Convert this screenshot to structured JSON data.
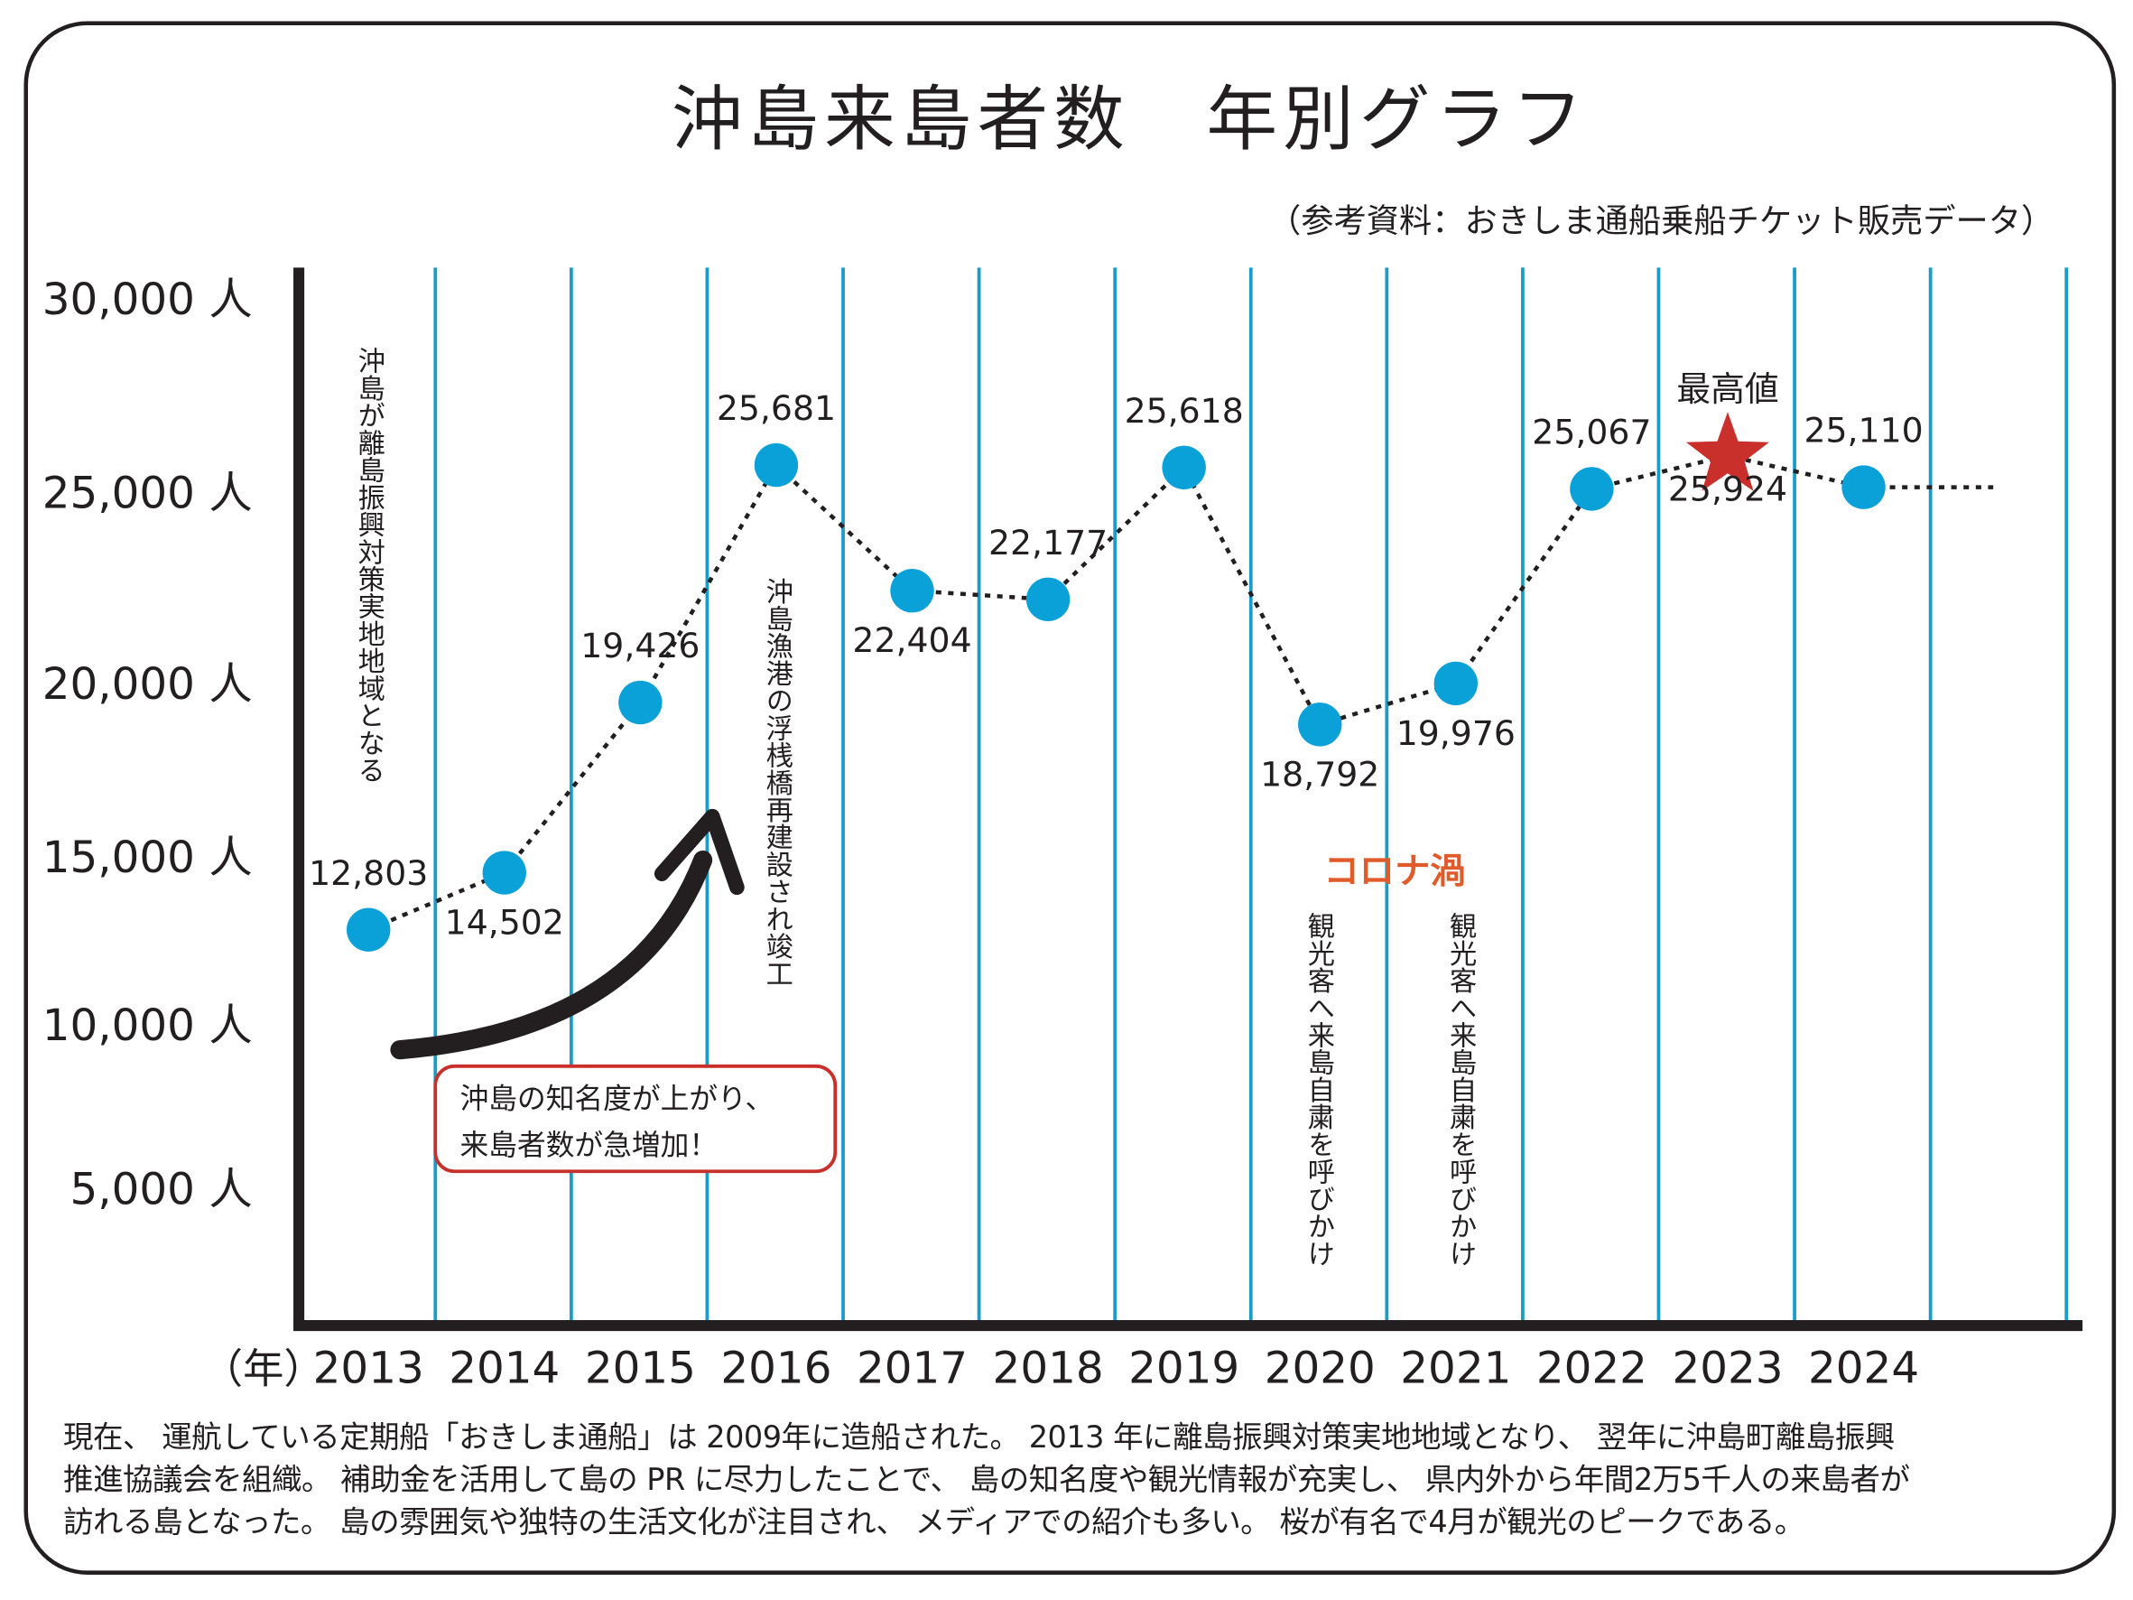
{
  "title": "沖島来島者数　年別グラフ",
  "source": "（参考資料：おきしま通船乗船チケット販売データ）",
  "colors": {
    "line": "#1a9cc9",
    "point": "#0aa0d8",
    "peak": "#c9302c",
    "covid": "#e05a2a",
    "callout_border": "#c9302c"
  },
  "chart_data": {
    "type": "line",
    "title": "沖島来島者数　年別グラフ",
    "xlabel": "（年）",
    "ylabel": "",
    "categories": [
      "2013",
      "2014",
      "2015",
      "2016",
      "2017",
      "2018",
      "2019",
      "2020",
      "2021",
      "2022",
      "2023",
      "2024"
    ],
    "series": [
      {
        "name": "来島者数",
        "values": [
          12803,
          14502,
          19426,
          25681,
          22404,
          22177,
          25618,
          18792,
          19976,
          25067,
          25924,
          25110
        ]
      }
    ],
    "value_labels": [
      "12,803",
      "14,502",
      "19,426",
      "25,681",
      "22,404",
      "22,177",
      "25,618",
      "18,792",
      "19,976",
      "25,067",
      "25,924",
      "25,110"
    ],
    "label_position": [
      "above",
      "below",
      "above",
      "above",
      "below",
      "above",
      "above",
      "below",
      "below",
      "above",
      "below",
      "above"
    ],
    "peak_index": 10,
    "peak_label": "最高値",
    "yticks": [
      30000,
      25000,
      20000,
      15000,
      10000,
      5000
    ],
    "ytick_labels": [
      "30,000 人",
      "25,000 人",
      "20,000 人",
      "15,000 人",
      "10,000 人",
      "5,000 人"
    ],
    "ylim": [
      0,
      30000
    ],
    "grid": "vertical",
    "annotations": {
      "y2013": "沖島が離島振興対策実地地域となる",
      "y2016": "沖島漁港の浮桟橋再建設され竣工",
      "covid": "コロナ渦",
      "y2020": "観光客へ来島自粛を呼びかけ",
      "y2021": "観光客へ来島自粛を呼びかけ",
      "callout_line1": "沖島の知名度が上がり、",
      "callout_line2": "来島者数が急増加！"
    }
  },
  "description_lines": [
    "現在、 運航している定期船「おきしま通船」は 2009年に造船された。 2013 年に離島振興対策実地地域となり、 翌年に沖島町離島振興",
    "推進協議会を組織。 補助金を活用して島の PR に尽力したことで、 島の知名度や観光情報が充実し、 県内外から年間2万5千人の来島者が",
    "訪れる島となった。 島の雰囲気や独特の生活文化が注目され、 メディアでの紹介も多い。 桜が有名で4月が観光のピークである。"
  ]
}
